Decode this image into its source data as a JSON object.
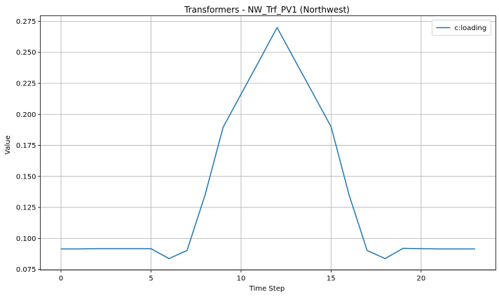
{
  "chart_data": {
    "type": "line",
    "title": "Transformers - NW_Trf_PV1 (Northwest)",
    "xlabel": "Time Step",
    "ylabel": "Value",
    "xlim": [
      -1.15,
      24.15
    ],
    "ylim": [
      0.0745,
      0.2795
    ],
    "xticks": [
      0,
      5,
      10,
      15,
      20
    ],
    "yticks": [
      0.075,
      0.1,
      0.125,
      0.15,
      0.175,
      0.2,
      0.225,
      0.25,
      0.275
    ],
    "ytick_labels": [
      "0.075",
      "0.100",
      "0.125",
      "0.150",
      "0.175",
      "0.200",
      "0.225",
      "0.250",
      "0.275"
    ],
    "grid": true,
    "legend_position": "top-right",
    "series": [
      {
        "name": "c:loading",
        "color": "#1f77b4",
        "x": [
          0,
          1,
          2,
          3,
          4,
          5,
          6,
          7,
          8,
          9,
          10,
          11,
          12,
          13,
          14,
          15,
          16,
          17,
          18,
          19,
          20,
          21,
          22,
          23
        ],
        "y": [
          0.0915,
          0.0915,
          0.0917,
          0.0917,
          0.0917,
          0.0917,
          0.0837,
          0.0903,
          0.135,
          0.1895,
          0.2163,
          0.243,
          0.27,
          0.2433,
          0.2167,
          0.19,
          0.135,
          0.0903,
          0.0837,
          0.092,
          0.0917,
          0.0915,
          0.0915,
          0.0915
        ]
      }
    ]
  }
}
